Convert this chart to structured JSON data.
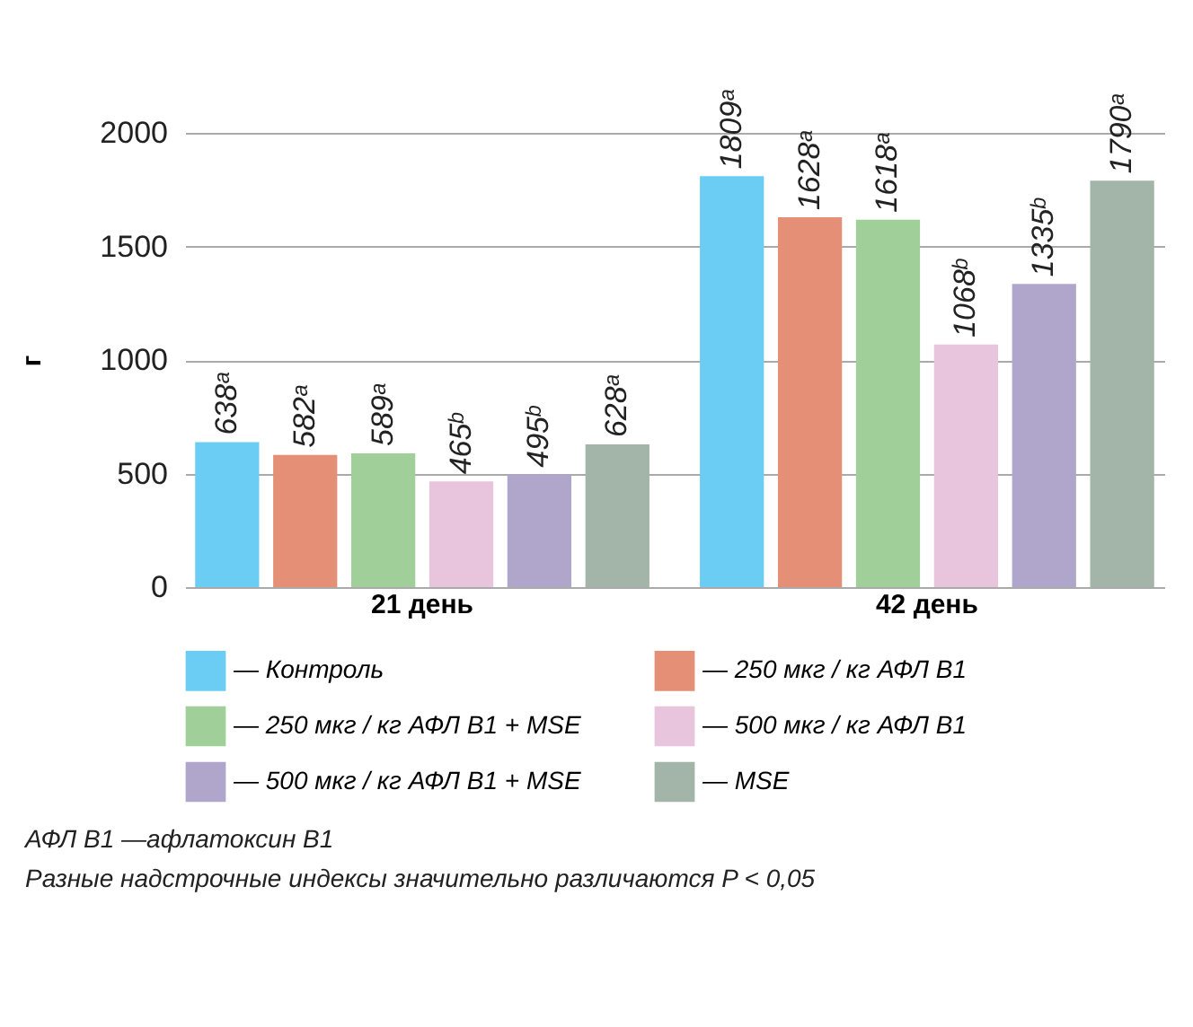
{
  "chart_data": {
    "type": "bar",
    "ylabel": "г",
    "categories": [
      "21 день",
      "42 день"
    ],
    "series": [
      {
        "name": "— Контроль",
        "color": "#6bcdf3",
        "values": [
          638,
          1809
        ],
        "value_labels": [
          "638ᵃ",
          "1809ᵃ"
        ]
      },
      {
        "name": "— 250 мкг / кг АФЛ В1",
        "color": "#e48f76",
        "values": [
          582,
          1628
        ],
        "value_labels": [
          "582ᵃ",
          "1628ᵃ"
        ]
      },
      {
        "name": "— 250 мкг / кг АФЛ В1 + MSE",
        "color": "#a1cf99",
        "values": [
          589,
          1618
        ],
        "value_labels": [
          "589ᵃ",
          "1618ᵃ"
        ]
      },
      {
        "name": "— 500 мкг / кг АФЛ В1",
        "color": "#e8c4dd",
        "values": [
          465,
          1068
        ],
        "value_labels": [
          "465ᵇ",
          "1068ᵇ"
        ]
      },
      {
        "name": "— 500 мкг / кг АФЛ В1 + MSE",
        "color": "#b0a6cb",
        "values": [
          495,
          1335
        ],
        "value_labels": [
          "495ᵇ",
          "1335ᵇ"
        ]
      },
      {
        "name": "— MSE",
        "color": "#a3b4a8",
        "values": [
          628,
          1790
        ],
        "value_labels": [
          "628ᵃ",
          "1790ᵃ"
        ]
      }
    ],
    "ylim": [
      0,
      2000
    ],
    "yticks": [
      0,
      500,
      1000,
      1500,
      2000
    ],
    "grid": "y",
    "legend": "bottom",
    "annotations": [
      "АФЛ В1 —афлатоксин В1",
      "Разные надстрочные индексы значительно различаются P < 0,05"
    ]
  }
}
